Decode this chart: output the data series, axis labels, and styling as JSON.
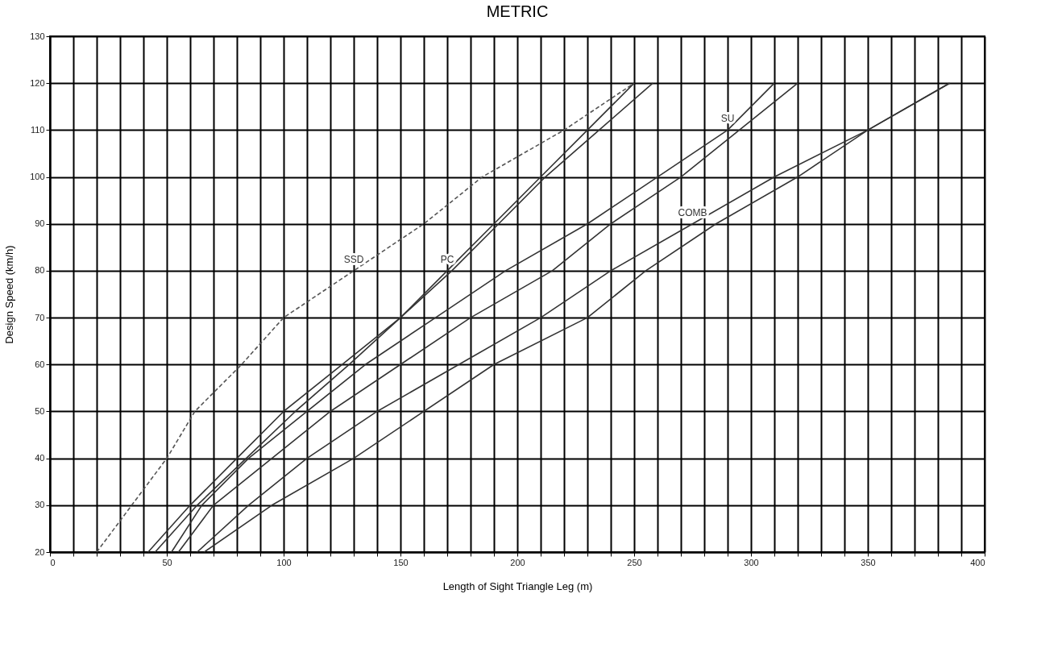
{
  "chart_data": {
    "type": "line",
    "title": "METRIC",
    "xlabel": "Length of Sight Triangle Leg (m)",
    "ylabel": "Design Speed (km/h)",
    "xlim": [
      0,
      400
    ],
    "ylim": [
      20,
      130
    ],
    "xticks": [
      0,
      {
        "value": 10,
        "label": null
      },
      {
        "value": 20,
        "label": null
      },
      {
        "value": 30,
        "label": null
      },
      {
        "value": 40,
        "label": null
      },
      50,
      {
        "value": 60,
        "label": null
      },
      {
        "value": 70,
        "label": null
      },
      {
        "value": 80,
        "label": null
      },
      {
        "value": 90,
        "label": null
      },
      100,
      {
        "value": 110,
        "label": null
      },
      {
        "value": 120,
        "label": null
      },
      {
        "value": 130,
        "label": null
      },
      {
        "value": 140,
        "label": null
      },
      150,
      {
        "value": 160,
        "label": null
      },
      {
        "value": 170,
        "label": null
      },
      {
        "value": 180,
        "label": null
      },
      {
        "value": 190,
        "label": null
      },
      200,
      {
        "value": 210,
        "label": null
      },
      {
        "value": 220,
        "label": null
      },
      {
        "value": 230,
        "label": null
      },
      {
        "value": 240,
        "label": null
      },
      250,
      {
        "value": 260,
        "label": null
      },
      {
        "value": 270,
        "label": null
      },
      {
        "value": 280,
        "label": null
      },
      {
        "value": 290,
        "label": null
      },
      300,
      {
        "value": 310,
        "label": null
      },
      {
        "value": 320,
        "label": null
      },
      {
        "value": 330,
        "label": null
      },
      {
        "value": 340,
        "label": null
      },
      350,
      {
        "value": 360,
        "label": null
      },
      {
        "value": 370,
        "label": null
      },
      {
        "value": 380,
        "label": null
      },
      {
        "value": 390,
        "label": null
      },
      400
    ],
    "yticks": [
      20,
      30,
      40,
      50,
      60,
      70,
      80,
      90,
      100,
      110,
      120,
      130
    ],
    "grid": true,
    "marker": "none",
    "series": [
      {
        "color": "#555555",
        "line_style": "dashed",
        "x": [
          20,
          35,
          50,
          62,
          82,
          100,
          130,
          160,
          185,
          220,
          250
        ],
        "values": [
          20,
          30,
          40,
          50,
          60,
          70,
          80,
          90,
          100,
          110,
          120
        ]
      },
      {
        "color": "#333333",
        "line_style": "solid",
        "x": [
          42,
          60,
          80,
          100,
          125,
          150,
          170,
          190,
          210,
          230,
          250
        ],
        "values": [
          20,
          30,
          40,
          50,
          60,
          70,
          80,
          90,
          100,
          110,
          120
        ]
      },
      {
        "color": "#333333",
        "line_style": "solid",
        "x": [
          45,
          63,
          84,
          105,
          128,
          150,
          172,
          192,
          212,
          235,
          258
        ],
        "values": [
          20,
          30,
          40,
          50,
          60,
          70,
          80,
          90,
          100,
          110,
          120
        ]
      },
      {
        "color": "#333333",
        "line_style": "solid",
        "x": [
          52,
          65,
          85,
          110,
          135,
          165,
          195,
          230,
          260,
          290,
          310
        ],
        "values": [
          20,
          30,
          40,
          50,
          60,
          70,
          80,
          90,
          100,
          110,
          120
        ]
      },
      {
        "color": "#333333",
        "line_style": "solid",
        "x": [
          55,
          70,
          95,
          120,
          150,
          180,
          215,
          240,
          270,
          295,
          320
        ],
        "values": [
          20,
          30,
          40,
          50,
          60,
          70,
          80,
          90,
          100,
          110,
          120
        ]
      },
      {
        "color": "#333333",
        "line_style": "solid",
        "x": [
          63,
          85,
          110,
          140,
          175,
          210,
          240,
          275,
          310,
          350,
          385
        ],
        "values": [
          20,
          30,
          40,
          50,
          60,
          70,
          80,
          90,
          100,
          110,
          120
        ]
      },
      {
        "color": "#333333",
        "line_style": "solid",
        "x": [
          66,
          95,
          130,
          160,
          190,
          230,
          255,
          285,
          320,
          350,
          385
        ],
        "values": [
          20,
          30,
          40,
          50,
          60,
          70,
          80,
          90,
          100,
          110,
          120
        ]
      }
    ],
    "annotations": [
      {
        "text": "SSD",
        "x": 130,
        "y": 80
      },
      {
        "text": "PC",
        "x": 170,
        "y": 80
      },
      {
        "text": "SU",
        "x": 290,
        "y": 110
      },
      {
        "text": "COMB",
        "x": 275,
        "y": 90
      }
    ]
  }
}
